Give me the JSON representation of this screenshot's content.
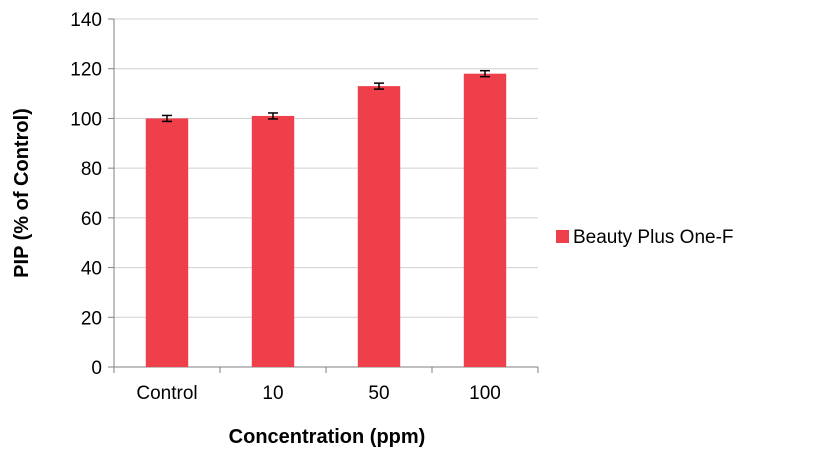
{
  "chart_data": {
    "type": "bar",
    "title": "",
    "xlabel": "Concentration (ppm)",
    "ylabel": "PIP (% of Control)",
    "categories": [
      "Control",
      "10",
      "50",
      "100"
    ],
    "series": [
      {
        "name": "Beauty Plus One-F",
        "values": [
          100,
          101,
          113,
          118
        ],
        "errors": [
          1.2,
          1.2,
          1.2,
          1.2
        ],
        "color": "#EE3F4A"
      }
    ],
    "ylim": [
      0,
      140
    ],
    "yticks": [
      "0",
      "20",
      "40",
      "60",
      "80",
      "100",
      "120",
      "140"
    ],
    "grid": true,
    "legend_position": "right"
  }
}
